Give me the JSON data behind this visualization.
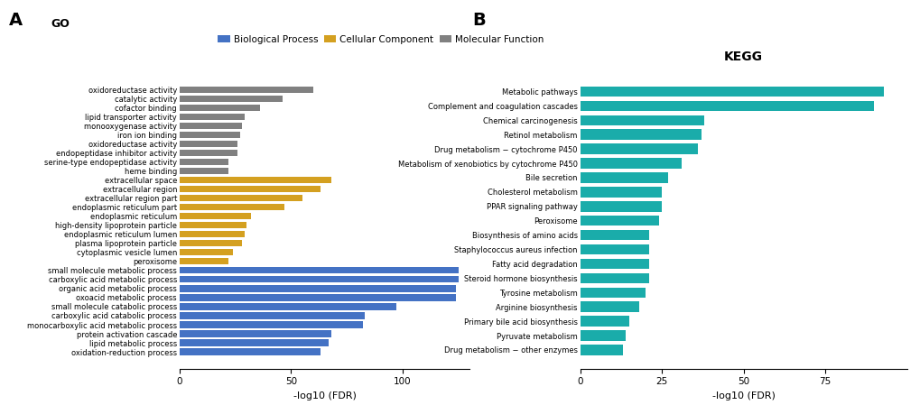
{
  "go_categories": [
    "oxidoreductase activity",
    "catalytic activity",
    "cofactor binding",
    "lipid transporter activity",
    "monooxygenase activity",
    "iron ion binding",
    "oxidoreductase activity",
    "endopeptidase inhibitor activity",
    "serine-type endopeptidase activity",
    "heme binding",
    "extracellular space",
    "extracellular region",
    "extracellular region part",
    "endoplasmic reticulum part",
    "endoplasmic reticulum",
    "high-density lipoprotein particle",
    "endoplasmic reticulum lumen",
    "plasma lipoprotein particle",
    "cytoplasmic vesicle lumen",
    "peroxisome",
    "small molecule metabolic process",
    "carboxylic acid metabolic process",
    "organic acid metabolic process",
    "oxoacid metabolic process",
    "small molecule catabolic process",
    "carboxylic acid catabolic process",
    "monocarboxylic acid metabolic process",
    "protein activation cascade",
    "lipid metabolic process",
    "oxidation-reduction process"
  ],
  "go_values": [
    60,
    46,
    36,
    29,
    28,
    27,
    26,
    26,
    22,
    22,
    68,
    63,
    55,
    47,
    32,
    30,
    29,
    28,
    24,
    22,
    125,
    125,
    124,
    124,
    97,
    83,
    82,
    68,
    67,
    63
  ],
  "go_colors": [
    "#808080",
    "#808080",
    "#808080",
    "#808080",
    "#808080",
    "#808080",
    "#808080",
    "#808080",
    "#808080",
    "#808080",
    "#D4A020",
    "#D4A020",
    "#D4A020",
    "#D4A020",
    "#D4A020",
    "#D4A020",
    "#D4A020",
    "#D4A020",
    "#D4A020",
    "#D4A020",
    "#4472C4",
    "#4472C4",
    "#4472C4",
    "#4472C4",
    "#4472C4",
    "#4472C4",
    "#4472C4",
    "#4472C4",
    "#4472C4",
    "#4472C4"
  ],
  "kegg_categories": [
    "Metabolic pathways",
    "Complement and coagulation cascades",
    "Chemical carcinogenesis",
    "Retinol metabolism",
    "Drug metabolism − cytochrome P450",
    "Metabolism of xenobiotics by cytochrome P450",
    "Bile secretion",
    "Cholesterol metabolism",
    "PPAR signaling pathway",
    "Peroxisome",
    "Biosynthesis of amino acids",
    "Staphylococcus aureus infection",
    "Fatty acid degradation",
    "Steroid hormone biosynthesis",
    "Tyrosine metabolism",
    "Arginine biosynthesis",
    "Primary bile acid biosynthesis",
    "Pyruvate metabolism",
    "Drug metabolism − other enzymes"
  ],
  "kegg_values": [
    93,
    90,
    38,
    37,
    36,
    31,
    27,
    25,
    25,
    24,
    21,
    21,
    21,
    21,
    20,
    18,
    15,
    14,
    13
  ],
  "kegg_color": "#1AACAA",
  "go_title": "GO",
  "kegg_title": "KEGG",
  "panel_a": "A",
  "panel_b": "B",
  "go_xlabel": "-log10 (FDR)",
  "kegg_xlabel": "-log10 (FDR)",
  "legend_entries": [
    "Biological Process",
    "Cellular Component",
    "Molecular Function"
  ],
  "legend_colors": [
    "#4472C4",
    "#D4A020",
    "#808080"
  ],
  "go_xticks": [
    0,
    50,
    100
  ],
  "kegg_xticks": [
    0,
    25,
    50,
    75
  ],
  "bar_height": 0.72,
  "background_color": "#ffffff"
}
